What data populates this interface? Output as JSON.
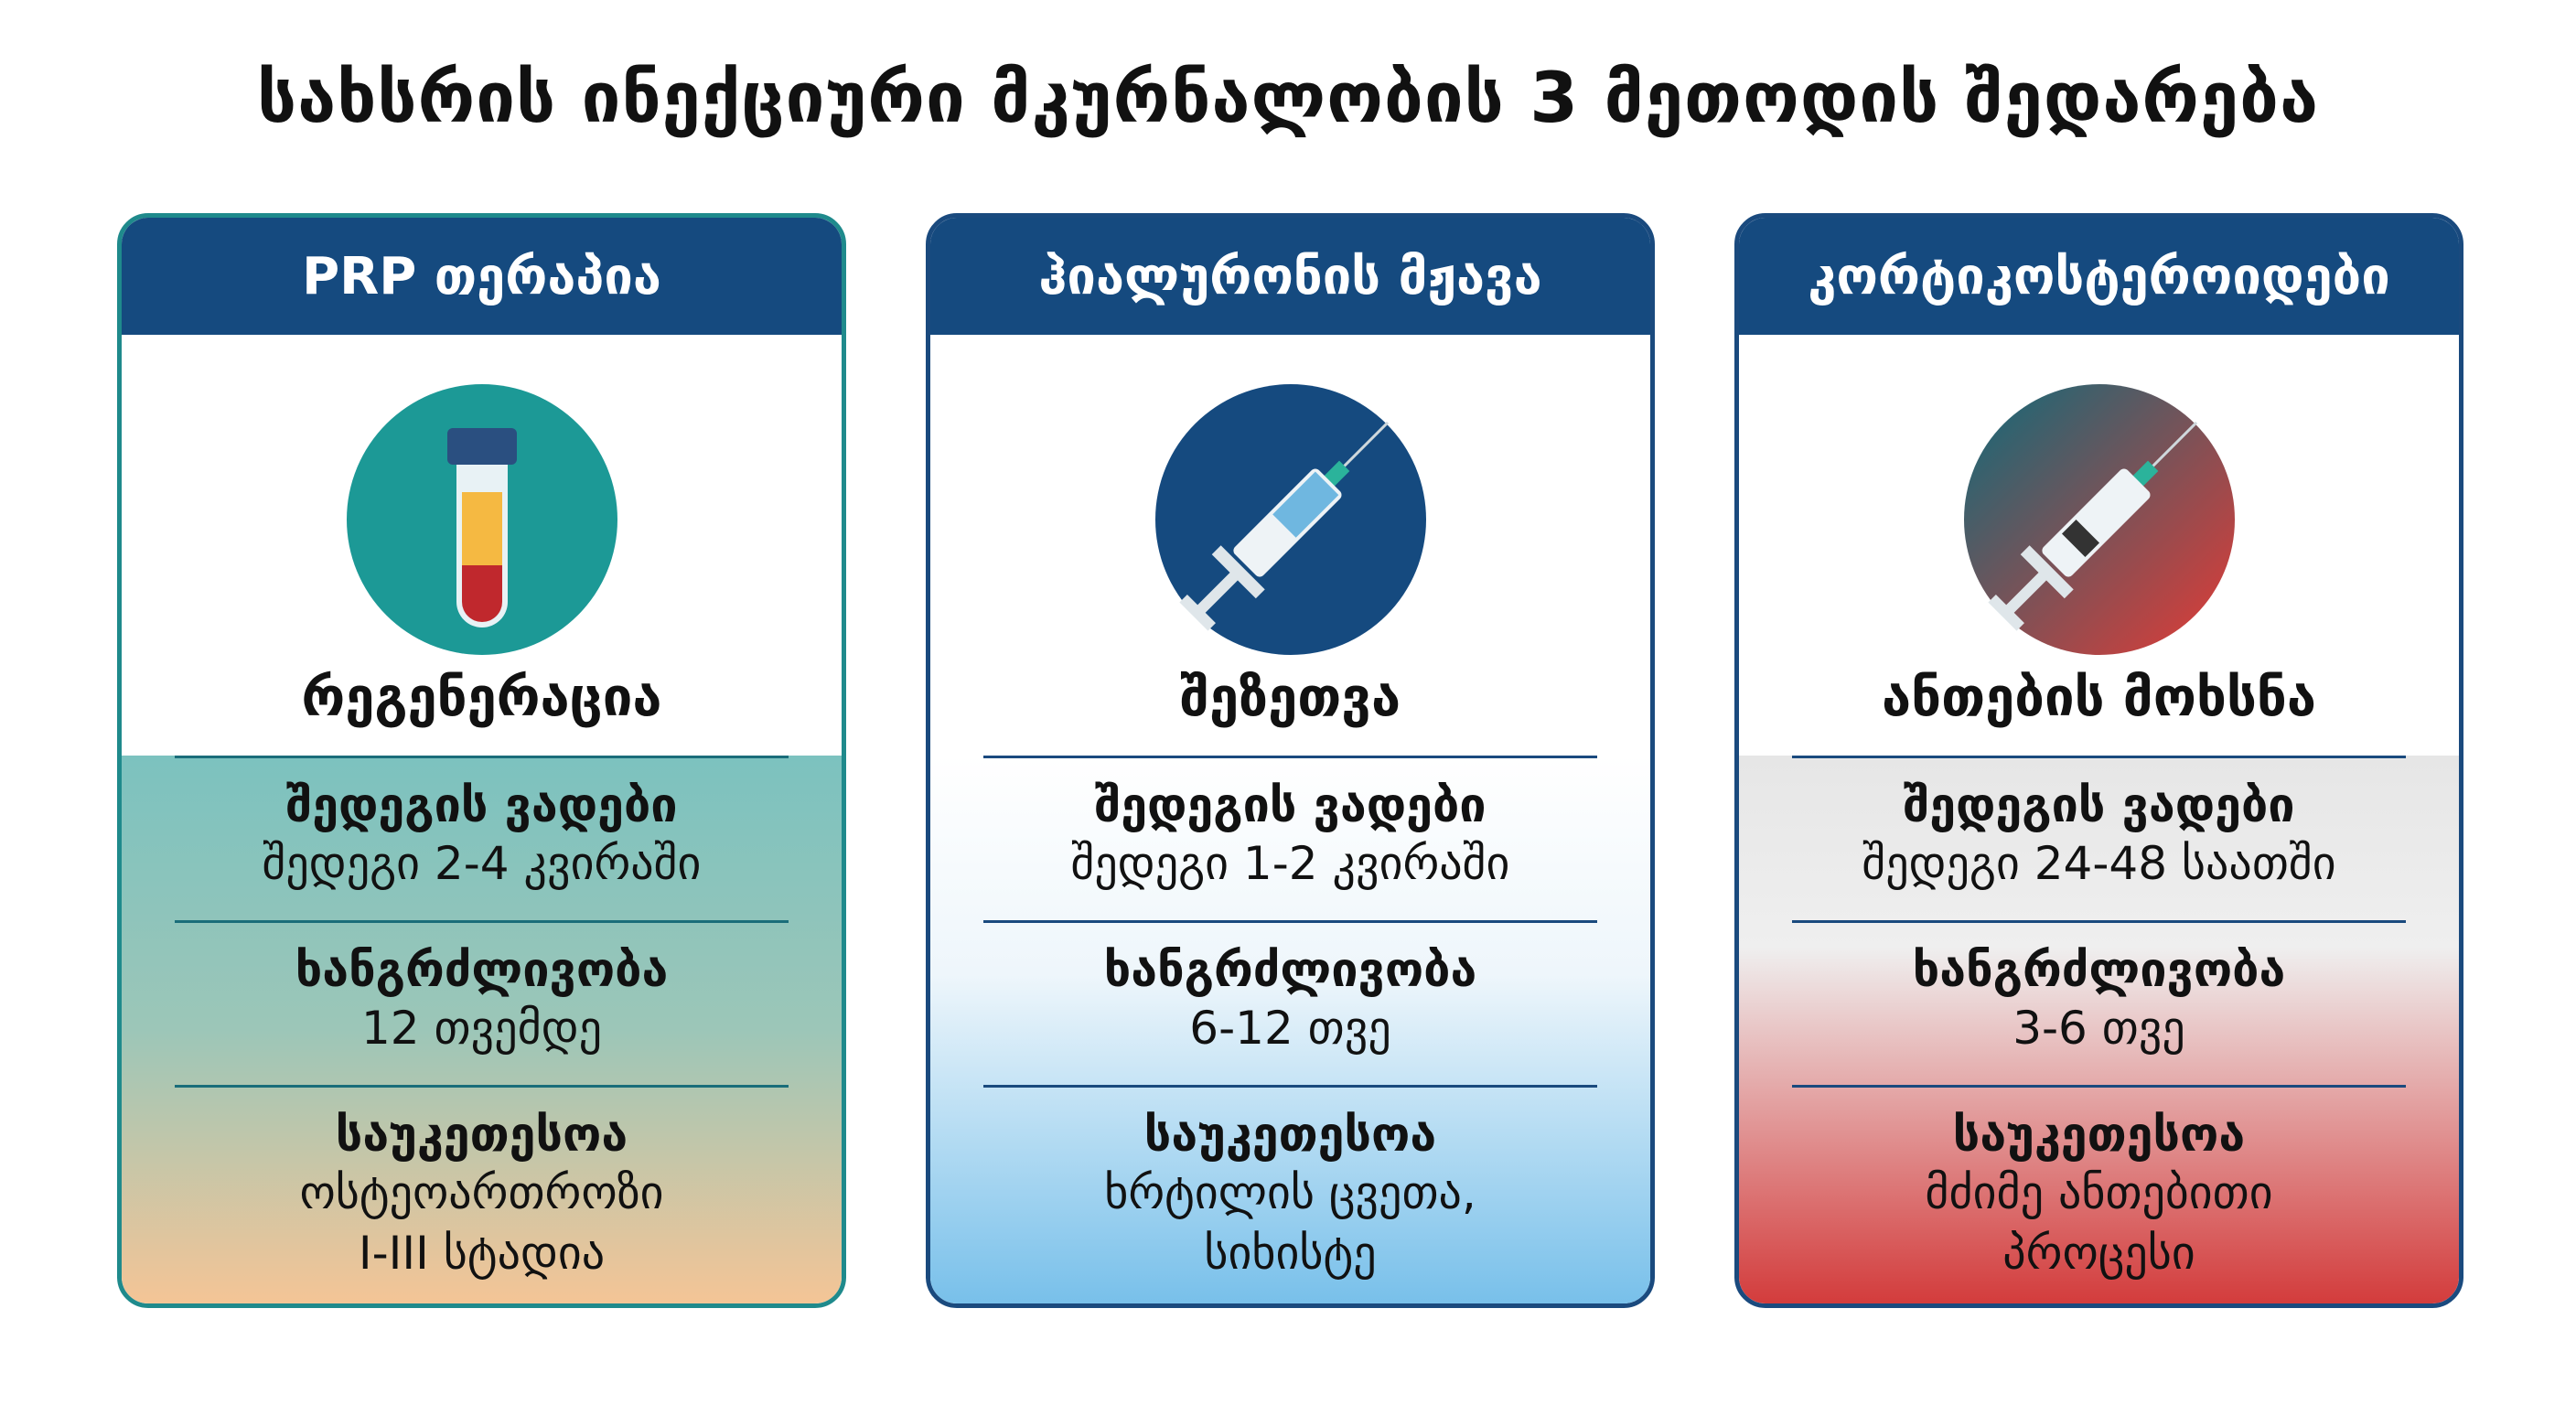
{
  "title": "სახსრის ინექციური მკურნალობის 3 მეთოდის შედარება",
  "cards": [
    {
      "header": "PRP თერაპია",
      "icon": "blood-test-tube-icon",
      "subtitle": "რეგენერაცია",
      "sections": [
        {
          "label": "შედეგის ვადები",
          "value": "შედეგი 2-4 კვირაში"
        },
        {
          "label": "ხანგრძლივობა",
          "value": "12 თვემდე"
        },
        {
          "label": "საუკეთესოა",
          "value": "ოსტეოართროზი",
          "value2": "I-III სტადია"
        }
      ]
    },
    {
      "header": "ჰიალურონის მჟავა",
      "icon": "syringe-icon",
      "subtitle": "შეზეთვა",
      "sections": [
        {
          "label": "შედეგის ვადები",
          "value": "შედეგი 1-2 კვირაში"
        },
        {
          "label": "ხანგრძლივობა",
          "value": "6-12 თვე"
        },
        {
          "label": "საუკეთესოა",
          "value": "ხრტილის ცვეთა,",
          "value2": "სიხისტე"
        }
      ]
    },
    {
      "header": "კორტიკოსტეროიდები",
      "icon": "syringe-icon",
      "subtitle": "ანთების მოხსნა",
      "sections": [
        {
          "label": "შედეგის ვადები",
          "value": "შედეგი 24-48 საათში"
        },
        {
          "label": "ხანგრძლივობა",
          "value": "3-6 თვე"
        },
        {
          "label": "საუკეთესოა",
          "value": "მძიმე ანთებითი",
          "value2": "პროცესი"
        }
      ]
    }
  ],
  "colors": {
    "header": "#154a7f",
    "prp": "#1f8a8c",
    "hyaluronic": "#1a4a7e",
    "cortico": "#d33c3c"
  }
}
